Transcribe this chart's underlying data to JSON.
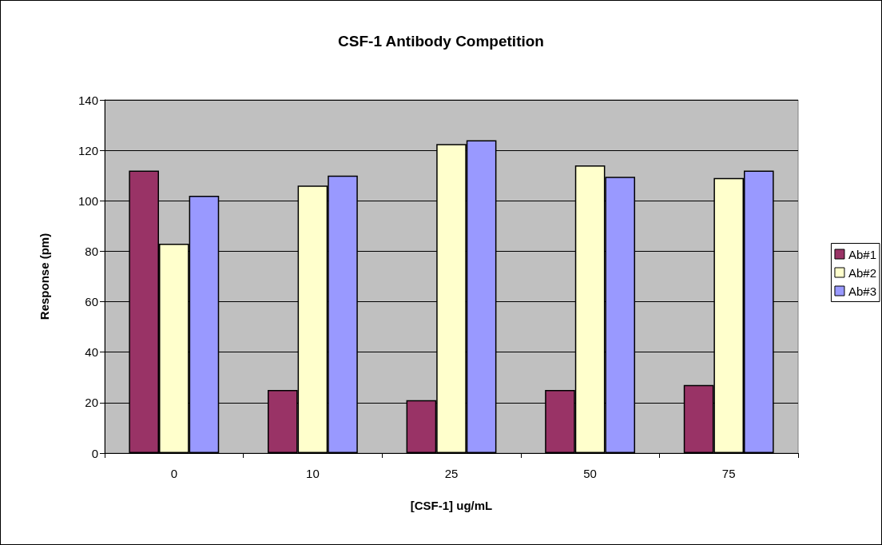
{
  "chart_data": {
    "type": "bar",
    "title": "CSF-1 Antibody Competition",
    "xlabel": "[CSF-1] ug/mL",
    "ylabel": "Response (pm)",
    "categories": [
      "0",
      "10",
      "25",
      "50",
      "75"
    ],
    "series": [
      {
        "name": "Ab#1",
        "color": "#993366",
        "values": [
          112,
          25,
          21,
          25,
          27
        ]
      },
      {
        "name": "Ab#2",
        "color": "#ffffcc",
        "values": [
          83,
          106,
          122.5,
          114,
          109
        ]
      },
      {
        "name": "Ab#3",
        "color": "#9999ff",
        "values": [
          102,
          110,
          124,
          109.5,
          112
        ]
      }
    ],
    "ylim": [
      0,
      140
    ],
    "yticks": [
      0,
      20,
      40,
      60,
      80,
      100,
      120,
      140
    ],
    "grid": "y",
    "legend": "right"
  }
}
